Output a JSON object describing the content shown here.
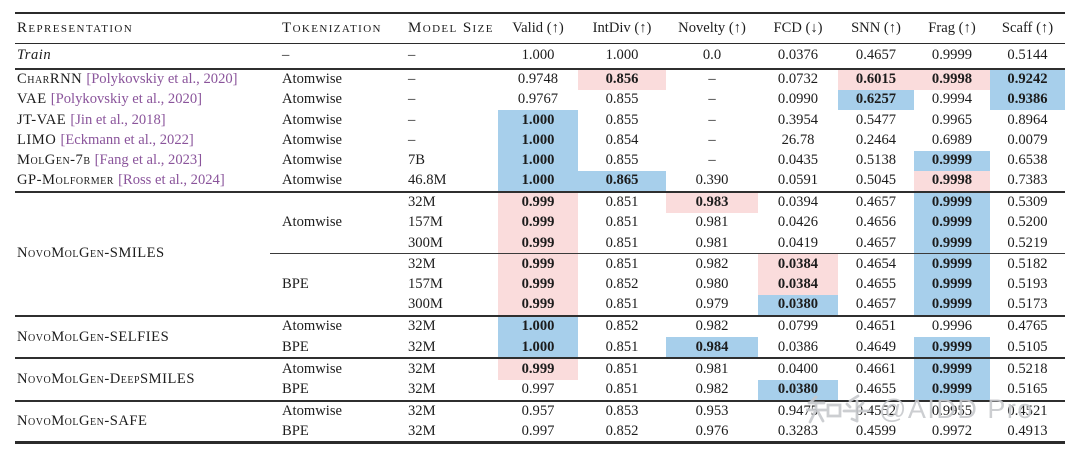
{
  "colors": {
    "highlight_pink": "#fadcdc",
    "highlight_blue": "#a7cfeb",
    "citation_purple": "#8a549b"
  },
  "watermark": {
    "text": "知乎 @AIDD Pro",
    "site": "知乎",
    "handle": "@AIDD Pro"
  },
  "table": {
    "columns": [
      "Representation",
      "Tokenization",
      "Model Size",
      "Valid (↑)",
      "IntDiv (↑)",
      "Novelty (↑)",
      "FCD (↓)",
      "SNN (↑)",
      "Frag (↑)",
      "Scaff (↑)"
    ],
    "groups": [
      {
        "kind": "plain",
        "name": "train-block",
        "rows": [
          {
            "rep": "Train",
            "italic": true,
            "tok": "–",
            "size": "–",
            "cells": [
              [
                "1.000"
              ],
              [
                "1.000"
              ],
              [
                "0.0"
              ],
              [
                "0.0376"
              ],
              [
                "0.4657"
              ],
              [
                "0.9999"
              ],
              [
                "0.5144"
              ]
            ]
          }
        ]
      },
      {
        "kind": "plain",
        "name": "baselines-block",
        "rows": [
          {
            "rep": "CharRNN",
            "cite": "[Polykovskiy et al., 2020]",
            "tok": "Atomwise",
            "size": "–",
            "cells": [
              [
                "0.9748"
              ],
              [
                "0.856",
                "pink"
              ],
              [
                "–"
              ],
              [
                "0.0732"
              ],
              [
                "0.6015",
                "pink"
              ],
              [
                "0.9998",
                "pink"
              ],
              [
                "0.9242",
                "blue"
              ]
            ]
          },
          {
            "rep": "VAE",
            "cite": "[Polykovskiy et al., 2020]",
            "tok": "Atomwise",
            "size": "–",
            "cells": [
              [
                "0.9767"
              ],
              [
                "0.855"
              ],
              [
                "–"
              ],
              [
                "0.0990"
              ],
              [
                "0.6257",
                "blue"
              ],
              [
                "0.9994"
              ],
              [
                "0.9386",
                "blue"
              ]
            ]
          },
          {
            "rep": "JT-VAE",
            "cite": "[Jin et al., 2018]",
            "tok": "Atomwise",
            "size": "–",
            "cells": [
              [
                "1.000",
                "blue"
              ],
              [
                "0.855"
              ],
              [
                "–"
              ],
              [
                "0.3954"
              ],
              [
                "0.5477"
              ],
              [
                "0.9965"
              ],
              [
                "0.8964"
              ]
            ]
          },
          {
            "rep": "LIMO",
            "cite": "[Eckmann et al., 2022]",
            "tok": "Atomwise",
            "size": "–",
            "cells": [
              [
                "1.000",
                "blue"
              ],
              [
                "0.854"
              ],
              [
                "–"
              ],
              [
                "26.78"
              ],
              [
                "0.2464"
              ],
              [
                "0.6989"
              ],
              [
                "0.0079"
              ]
            ]
          },
          {
            "rep": "MolGen-7b",
            "cite": "[Fang et al., 2023]",
            "tok": "Atomwise",
            "size": "7B",
            "cells": [
              [
                "1.000",
                "blue"
              ],
              [
                "0.855"
              ],
              [
                "–"
              ],
              [
                "0.0435"
              ],
              [
                "0.5138"
              ],
              [
                "0.9999",
                "blue"
              ],
              [
                "0.6538"
              ]
            ]
          },
          {
            "rep": "GP-Molformer",
            "cite": "[Ross et al., 2024]",
            "tok": "Atomwise",
            "size": "46.8M",
            "cells": [
              [
                "1.000",
                "blue"
              ],
              [
                "0.865",
                "blue"
              ],
              [
                "0.390"
              ],
              [
                "0.0591"
              ],
              [
                "0.5045"
              ],
              [
                "0.9998",
                "pink"
              ],
              [
                "0.7383"
              ]
            ]
          }
        ]
      },
      {
        "kind": "grouped",
        "name": "novomolgen-smiles-block",
        "rep": "NovoMolGen-SMILES",
        "subgroups": [
          {
            "tok": "Atomwise",
            "rows": [
              {
                "size": "32M",
                "cells": [
                  [
                    "0.999",
                    "pink"
                  ],
                  [
                    "0.851"
                  ],
                  [
                    "0.983",
                    "pink"
                  ],
                  [
                    "0.0394"
                  ],
                  [
                    "0.4657"
                  ],
                  [
                    "0.9999",
                    "blue"
                  ],
                  [
                    "0.5309"
                  ]
                ]
              },
              {
                "size": "157M",
                "cells": [
                  [
                    "0.999",
                    "pink"
                  ],
                  [
                    "0.851"
                  ],
                  [
                    "0.981"
                  ],
                  [
                    "0.0426"
                  ],
                  [
                    "0.4656"
                  ],
                  [
                    "0.9999",
                    "blue"
                  ],
                  [
                    "0.5200"
                  ]
                ]
              },
              {
                "size": "300M",
                "cells": [
                  [
                    "0.999",
                    "pink"
                  ],
                  [
                    "0.851"
                  ],
                  [
                    "0.981"
                  ],
                  [
                    "0.0419"
                  ],
                  [
                    "0.4657"
                  ],
                  [
                    "0.9999",
                    "blue"
                  ],
                  [
                    "0.5219"
                  ]
                ]
              }
            ]
          },
          {
            "tok": "BPE",
            "rows": [
              {
                "size": "32M",
                "cells": [
                  [
                    "0.999",
                    "pink"
                  ],
                  [
                    "0.851"
                  ],
                  [
                    "0.982"
                  ],
                  [
                    "0.0384",
                    "pink"
                  ],
                  [
                    "0.4654"
                  ],
                  [
                    "0.9999",
                    "blue"
                  ],
                  [
                    "0.5182"
                  ]
                ]
              },
              {
                "size": "157M",
                "cells": [
                  [
                    "0.999",
                    "pink"
                  ],
                  [
                    "0.852"
                  ],
                  [
                    "0.980"
                  ],
                  [
                    "0.0384",
                    "pink"
                  ],
                  [
                    "0.4655"
                  ],
                  [
                    "0.9999",
                    "blue"
                  ],
                  [
                    "0.5193"
                  ]
                ]
              },
              {
                "size": "300M",
                "cells": [
                  [
                    "0.999",
                    "pink"
                  ],
                  [
                    "0.851"
                  ],
                  [
                    "0.979"
                  ],
                  [
                    "0.0380",
                    "blue"
                  ],
                  [
                    "0.4657"
                  ],
                  [
                    "0.9999",
                    "blue"
                  ],
                  [
                    "0.5173"
                  ]
                ]
              }
            ]
          }
        ]
      },
      {
        "kind": "grouped",
        "name": "novomolgen-selfies-block",
        "rep": "NovoMolGen-SELFIES",
        "subgroups": [
          {
            "tok": "Atomwise",
            "rows": [
              {
                "size": "32M",
                "cells": [
                  [
                    "1.000",
                    "blue"
                  ],
                  [
                    "0.852"
                  ],
                  [
                    "0.982"
                  ],
                  [
                    "0.0799"
                  ],
                  [
                    "0.4651"
                  ],
                  [
                    "0.9996"
                  ],
                  [
                    "0.4765"
                  ]
                ]
              }
            ]
          },
          {
            "tok": "BPE",
            "rows": [
              {
                "size": "32M",
                "cells": [
                  [
                    "1.000",
                    "blue"
                  ],
                  [
                    "0.851"
                  ],
                  [
                    "0.984",
                    "blue"
                  ],
                  [
                    "0.0386"
                  ],
                  [
                    "0.4649"
                  ],
                  [
                    "0.9999",
                    "blue"
                  ],
                  [
                    "0.5105"
                  ]
                ]
              }
            ]
          }
        ]
      },
      {
        "kind": "grouped",
        "name": "novomolgen-deepsmiles-block",
        "rep": "NovoMolGen-DeepSMILES",
        "subgroups": [
          {
            "tok": "Atomwise",
            "rows": [
              {
                "size": "32M",
                "cells": [
                  [
                    "0.999",
                    "pink"
                  ],
                  [
                    "0.851"
                  ],
                  [
                    "0.981"
                  ],
                  [
                    "0.0400"
                  ],
                  [
                    "0.4661"
                  ],
                  [
                    "0.9999",
                    "blue"
                  ],
                  [
                    "0.5218"
                  ]
                ]
              }
            ]
          },
          {
            "tok": "BPE",
            "rows": [
              {
                "size": "32M",
                "cells": [
                  [
                    "0.997"
                  ],
                  [
                    "0.851"
                  ],
                  [
                    "0.982"
                  ],
                  [
                    "0.0380",
                    "blue"
                  ],
                  [
                    "0.4655"
                  ],
                  [
                    "0.9999",
                    "blue"
                  ],
                  [
                    "0.5165"
                  ]
                ]
              }
            ]
          }
        ]
      },
      {
        "kind": "grouped",
        "name": "novomolgen-safe-block",
        "rep": "NovoMolGen-SAFE",
        "subgroups": [
          {
            "tok": "Atomwise",
            "rows": [
              {
                "size": "32M",
                "cells": [
                  [
                    "0.957"
                  ],
                  [
                    "0.853"
                  ],
                  [
                    "0.953"
                  ],
                  [
                    "0.9475"
                  ],
                  [
                    "0.4552"
                  ],
                  [
                    "0.9955"
                  ],
                  [
                    "0.4521"
                  ]
                ]
              }
            ]
          },
          {
            "tok": "BPE",
            "rows": [
              {
                "size": "32M",
                "cells": [
                  [
                    "0.997"
                  ],
                  [
                    "0.852"
                  ],
                  [
                    "0.976"
                  ],
                  [
                    "0.3283"
                  ],
                  [
                    "0.4599"
                  ],
                  [
                    "0.9972"
                  ],
                  [
                    "0.4913"
                  ]
                ]
              }
            ]
          }
        ]
      }
    ]
  }
}
